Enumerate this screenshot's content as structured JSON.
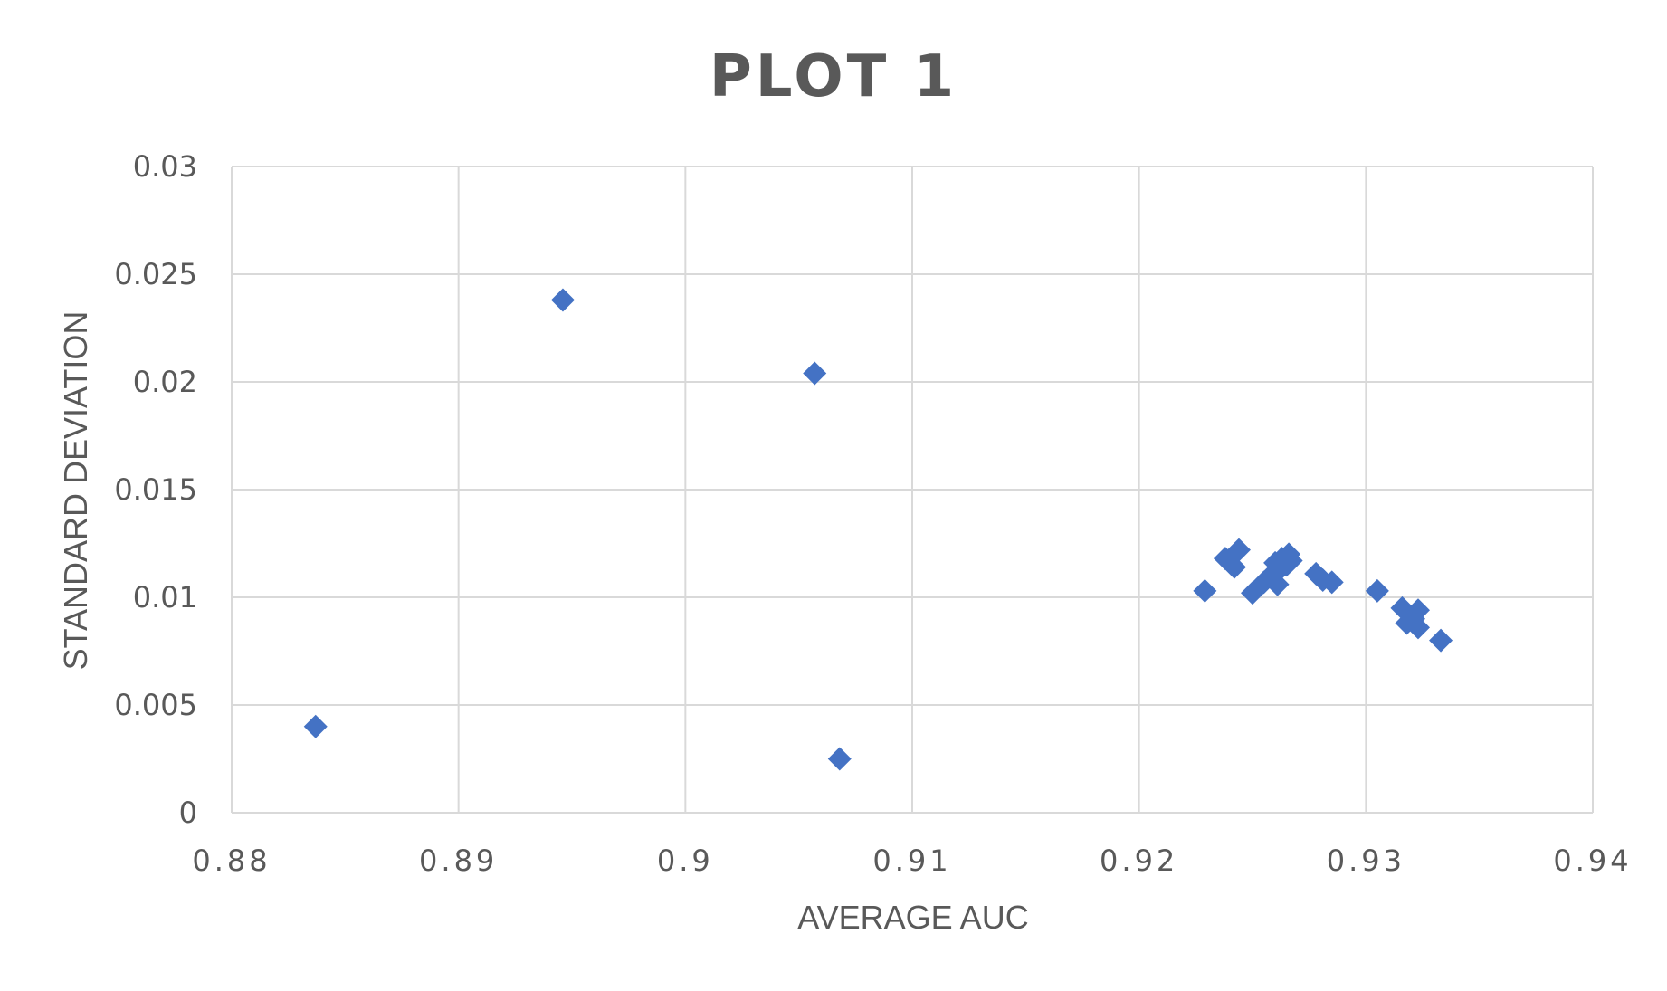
{
  "chart_data": {
    "type": "scatter",
    "title": "PLOT 1",
    "xlabel": "AVERAGE AUC",
    "ylabel": "STANDARD DEVIATION",
    "xlim": [
      0.88,
      0.94
    ],
    "ylim": [
      0,
      0.03
    ],
    "x_ticks": [
      "0.88",
      "0.89",
      "0.9",
      "0.91",
      "0.92",
      "0.93",
      "0.94"
    ],
    "y_ticks": [
      "0",
      "0.005",
      "0.01",
      "0.015",
      "0.02",
      "0.025",
      "0.03"
    ],
    "grid": true,
    "legend": "none",
    "marker": "diamond",
    "colors": {
      "marker": "#4472C4",
      "grid": "#D9D9D9",
      "title": "#595959",
      "text": "#595959"
    },
    "points": [
      {
        "x": 0.8837,
        "y": 0.004
      },
      {
        "x": 0.8946,
        "y": 0.0238
      },
      {
        "x": 0.9057,
        "y": 0.0204
      },
      {
        "x": 0.9068,
        "y": 0.0025
      },
      {
        "x": 0.9229,
        "y": 0.0103
      },
      {
        "x": 0.9238,
        "y": 0.0118
      },
      {
        "x": 0.9242,
        "y": 0.0114
      },
      {
        "x": 0.9244,
        "y": 0.0122
      },
      {
        "x": 0.925,
        "y": 0.0102
      },
      {
        "x": 0.9255,
        "y": 0.0107
      },
      {
        "x": 0.9258,
        "y": 0.011
      },
      {
        "x": 0.926,
        "y": 0.0116
      },
      {
        "x": 0.9261,
        "y": 0.0106
      },
      {
        "x": 0.9262,
        "y": 0.0113
      },
      {
        "x": 0.9263,
        "y": 0.0118
      },
      {
        "x": 0.9265,
        "y": 0.0115
      },
      {
        "x": 0.9266,
        "y": 0.012
      },
      {
        "x": 0.9267,
        "y": 0.0117
      },
      {
        "x": 0.9278,
        "y": 0.0111
      },
      {
        "x": 0.9281,
        "y": 0.0108
      },
      {
        "x": 0.9285,
        "y": 0.0107
      },
      {
        "x": 0.9305,
        "y": 0.0103
      },
      {
        "x": 0.9316,
        "y": 0.0095
      },
      {
        "x": 0.9318,
        "y": 0.0088
      },
      {
        "x": 0.9321,
        "y": 0.009
      },
      {
        "x": 0.9323,
        "y": 0.0094
      },
      {
        "x": 0.9323,
        "y": 0.0086
      },
      {
        "x": 0.9333,
        "y": 0.008
      }
    ]
  }
}
